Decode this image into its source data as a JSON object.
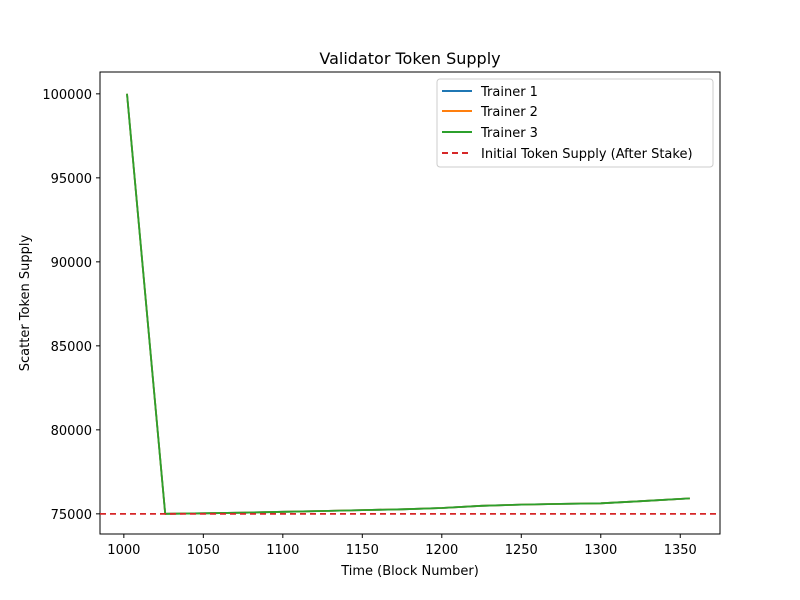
{
  "chart_data": {
    "type": "line",
    "title": "Validator Token Supply",
    "xlabel": "Time (Block Number)",
    "ylabel": "Scatter Token Supply",
    "xlim": [
      985,
      1375
    ],
    "ylim": [
      73800,
      101300
    ],
    "xticks": [
      1000,
      1050,
      1100,
      1150,
      1200,
      1250,
      1300,
      1350
    ],
    "yticks": [
      75000,
      80000,
      85000,
      90000,
      95000,
      100000
    ],
    "legend_position": "top-right",
    "grid": false,
    "series": [
      {
        "name": "Trainer 1",
        "color": "#1f77b4",
        "x": [
          1002,
          1026,
          1050,
          1075,
          1100,
          1125,
          1150,
          1175,
          1200,
          1225,
          1250,
          1275,
          1300,
          1325,
          1356
        ],
        "y": [
          100000,
          75000,
          75030,
          75070,
          75120,
          75170,
          75220,
          75270,
          75350,
          75480,
          75550,
          75590,
          75630,
          75750,
          75920
        ]
      },
      {
        "name": "Trainer 2",
        "color": "#ff7f0e",
        "x": [
          1002,
          1026,
          1050,
          1075,
          1100,
          1125,
          1150,
          1175,
          1200,
          1225,
          1250,
          1275,
          1300,
          1325,
          1356
        ],
        "y": [
          100000,
          75000,
          75030,
          75070,
          75120,
          75170,
          75220,
          75270,
          75350,
          75480,
          75550,
          75590,
          75630,
          75750,
          75920
        ]
      },
      {
        "name": "Trainer 3",
        "color": "#2ca02c",
        "x": [
          1002,
          1026,
          1050,
          1075,
          1100,
          1125,
          1150,
          1175,
          1200,
          1225,
          1250,
          1275,
          1300,
          1325,
          1356
        ],
        "y": [
          100000,
          75000,
          75030,
          75070,
          75120,
          75170,
          75220,
          75270,
          75350,
          75480,
          75550,
          75590,
          75630,
          75750,
          75920
        ]
      }
    ],
    "reference_line": {
      "name": "Initial Token Supply (After Stake)",
      "y": 75000,
      "color": "#d62728",
      "style": "dashed"
    }
  }
}
